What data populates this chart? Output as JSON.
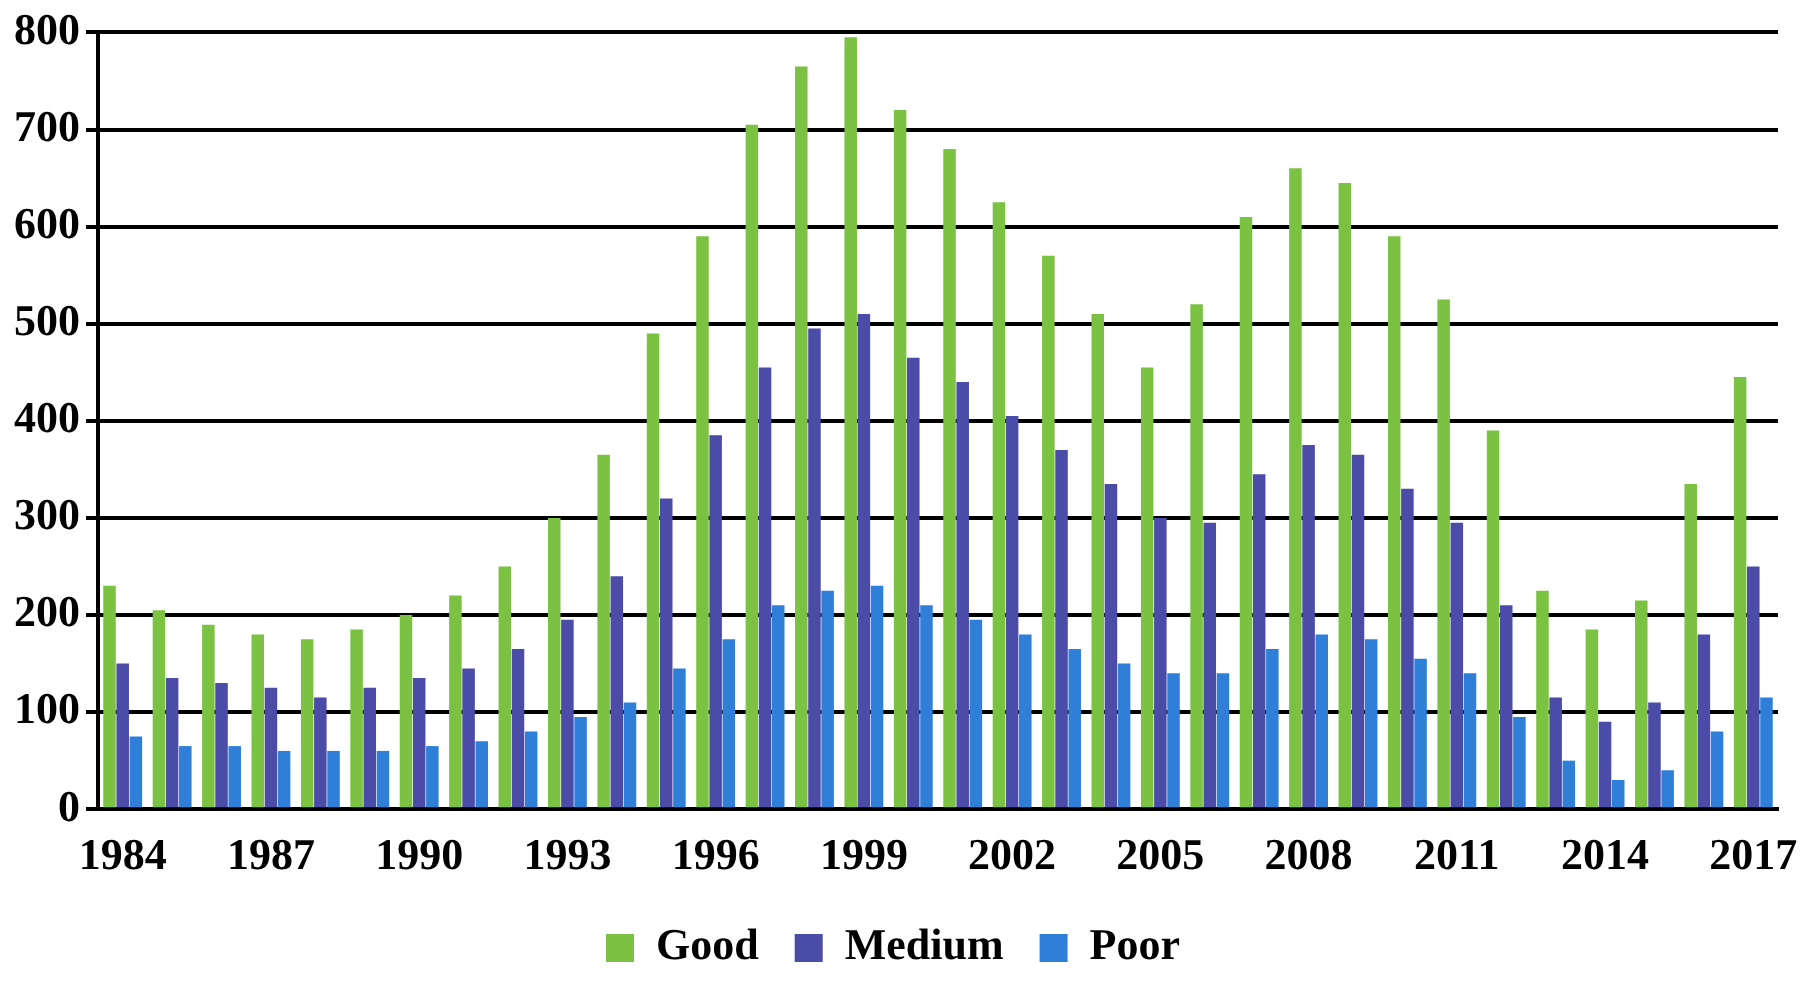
{
  "chart_data": {
    "type": "bar",
    "categories": [
      "1984",
      null,
      null,
      "1987",
      null,
      null,
      "1990",
      null,
      null,
      "1993",
      null,
      null,
      "1996",
      null,
      null,
      "1999",
      null,
      null,
      "2002",
      null,
      null,
      "2005",
      null,
      null,
      "2008",
      null,
      null,
      "2011",
      null,
      null,
      "2014",
      null,
      null,
      "2017"
    ],
    "series": [
      {
        "name": "Good",
        "color": "#7cc242",
        "values": [
          230,
          205,
          190,
          180,
          175,
          185,
          200,
          220,
          250,
          300,
          365,
          490,
          590,
          705,
          765,
          795,
          720,
          680,
          625,
          570,
          510,
          455,
          520,
          610,
          660,
          645,
          590,
          525,
          390,
          225,
          185,
          215,
          335,
          445
        ]
      },
      {
        "name": "Medium",
        "color": "#4b4ba8",
        "values": [
          150,
          135,
          130,
          125,
          115,
          125,
          135,
          145,
          165,
          195,
          240,
          320,
          385,
          455,
          495,
          510,
          465,
          440,
          405,
          370,
          335,
          300,
          295,
          345,
          375,
          365,
          330,
          295,
          210,
          115,
          90,
          110,
          180,
          250
        ]
      },
      {
        "name": "Poor",
        "color": "#2f7fd8",
        "values": [
          75,
          65,
          65,
          60,
          60,
          60,
          65,
          70,
          80,
          95,
          110,
          145,
          175,
          210,
          225,
          230,
          210,
          195,
          180,
          165,
          150,
          140,
          140,
          165,
          180,
          175,
          155,
          140,
          95,
          50,
          30,
          40,
          80,
          115
        ]
      }
    ],
    "ylim": [
      0,
      800
    ],
    "yticks": [
      0,
      100,
      200,
      300,
      400,
      500,
      600,
      700,
      800
    ],
    "grid": "y",
    "legend": "bottom"
  }
}
